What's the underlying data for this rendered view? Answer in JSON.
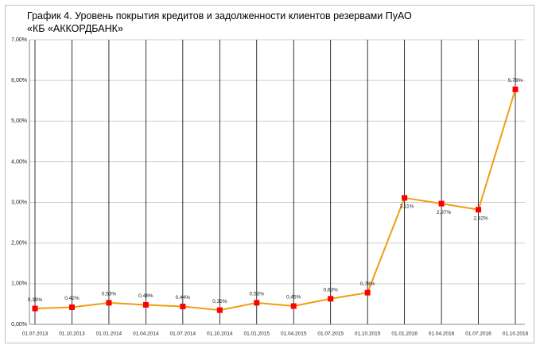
{
  "chart_data": {
    "type": "line",
    "title": "График 4. Уровень покрытия кредитов и задолженности клиентов резервами ПуАО «КБ «АККОРДБАНК»",
    "categories": [
      "01.07.2013",
      "01.10.2013",
      "01.01.2014",
      "01.04.2014",
      "01.07.2014",
      "01.10.2014",
      "01.01.2015",
      "01.04.2015",
      "01.07.2015",
      "01.10.2015",
      "01.01.2016",
      "01.04.2016",
      "01.07.2016",
      "01.10.2016"
    ],
    "series": [
      {
        "name": "Уровень покрытия",
        "color": "#f39c12",
        "marker_color": "#ff0000",
        "values": [
          0.39,
          0.42,
          0.53,
          0.48,
          0.44,
          0.35,
          0.53,
          0.45,
          0.63,
          0.78,
          3.11,
          2.97,
          2.82,
          5.78
        ],
        "value_labels": [
          "0,39%",
          "0,42%",
          "0,53%",
          "0,48%",
          "0,44%",
          "0,35%",
          "0,53%",
          "0,45%",
          "0,63%",
          "0,78%",
          "3,11%",
          "2,97%",
          "2,82%",
          "5,78%"
        ]
      }
    ],
    "ylim": [
      0,
      7
    ],
    "yticks": [
      {
        "value": 0,
        "label": "0,00%"
      },
      {
        "value": 1,
        "label": "1,00%"
      },
      {
        "value": 2,
        "label": "2,00%"
      },
      {
        "value": 3,
        "label": "3,00%"
      },
      {
        "value": 4,
        "label": "4,00%"
      },
      {
        "value": 5,
        "label": "5,00%"
      },
      {
        "value": 6,
        "label": "6,00%"
      },
      {
        "value": 7,
        "label": "7,00%"
      }
    ],
    "grid": true
  }
}
